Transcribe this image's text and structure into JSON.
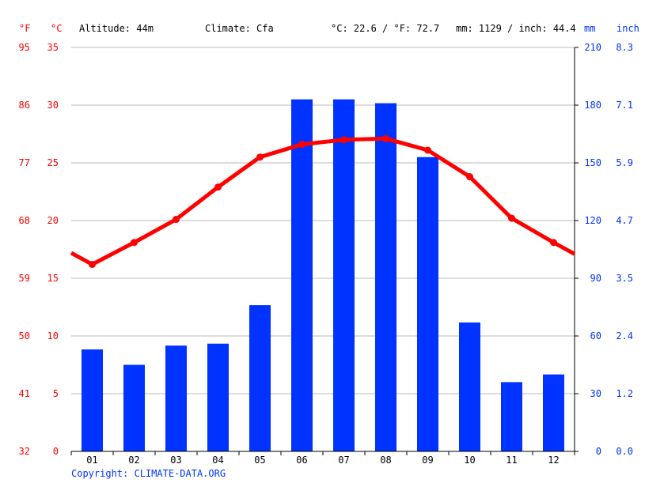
{
  "header": {
    "f_unit": "°F",
    "c_unit": "°C",
    "altitude": "Altitude: 44m",
    "climate": "Climate: Cfa",
    "temp_avg": "°C: 22.6 / °F: 72.7",
    "precip_total": "mm: 1129 / inch: 44.4",
    "mm_unit": "mm",
    "inch_unit": "inch"
  },
  "copyright": "Copyright: CLIMATE-DATA.ORG",
  "colors": {
    "temp": "#ff0000",
    "precip": "#0033ff",
    "grid": "#bbbbbb",
    "axis": "#000000"
  },
  "chart_data": {
    "type": "bar+line",
    "categories": [
      "01",
      "02",
      "03",
      "04",
      "05",
      "06",
      "07",
      "08",
      "09",
      "10",
      "11",
      "12"
    ],
    "series": [
      {
        "values": [
          53,
          45,
          55,
          56,
          76,
          183,
          183,
          181,
          153,
          67,
          36,
          40
        ],
        "axis": "mm"
      },
      {
        "values": [
          16.2,
          18.1,
          20.1,
          22.9,
          25.5,
          26.6,
          27.0,
          27.1,
          26.1,
          23.8,
          20.2,
          18.1
        ],
        "axis": "°C"
      }
    ],
    "line_edges": {
      "start": 17.2,
      "end": 17.1
    },
    "left_axis_c": {
      "ticks": [
        "0",
        "5",
        "10",
        "15",
        "20",
        "25",
        "30",
        "35"
      ],
      "ylim": [
        0,
        35
      ]
    },
    "left_axis_f": {
      "ticks": [
        "32",
        "41",
        "50",
        "59",
        "68",
        "77",
        "86",
        "95"
      ]
    },
    "right_axis_mm": {
      "ticks": [
        "0",
        "30",
        "60",
        "90",
        "120",
        "150",
        "180",
        "210"
      ],
      "ylim": [
        0,
        210
      ]
    },
    "right_axis_inch": {
      "ticks": [
        "0.0",
        "1.2",
        "2.4",
        "3.5",
        "4.7",
        "5.9",
        "7.1",
        "8.3"
      ]
    },
    "grid": true
  }
}
